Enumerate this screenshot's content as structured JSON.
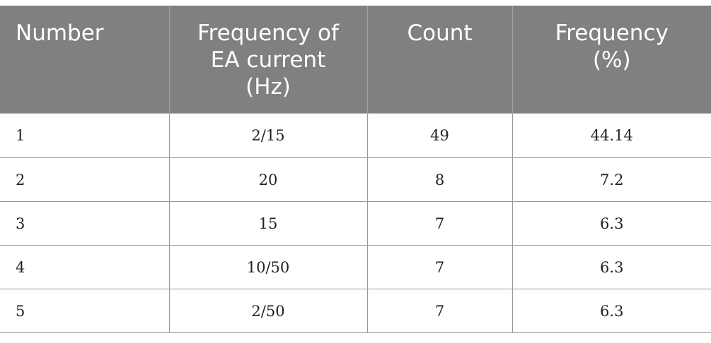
{
  "table": {
    "headers": [
      "Number",
      "Frequency of\nEA current\n(Hz)",
      "Count",
      "Frequency\n(%)"
    ],
    "header_lines": [
      [
        "Number"
      ],
      [
        "Frequency of",
        "EA current",
        "(Hz)"
      ],
      [
        "Count"
      ],
      [
        "Frequency",
        "(%)"
      ]
    ],
    "rows": [
      [
        "1",
        "2/15",
        "49",
        "44.14"
      ],
      [
        "2",
        "20",
        "8",
        "7.2"
      ],
      [
        "3",
        "15",
        "7",
        "6.3"
      ],
      [
        "4",
        "10/50",
        "7",
        "6.3"
      ],
      [
        "5",
        "2/50",
        "7",
        "6.3"
      ]
    ]
  },
  "colors": {
    "header_background": "#808080",
    "header_text": "#ffffff",
    "grid_line": "#999999"
  }
}
